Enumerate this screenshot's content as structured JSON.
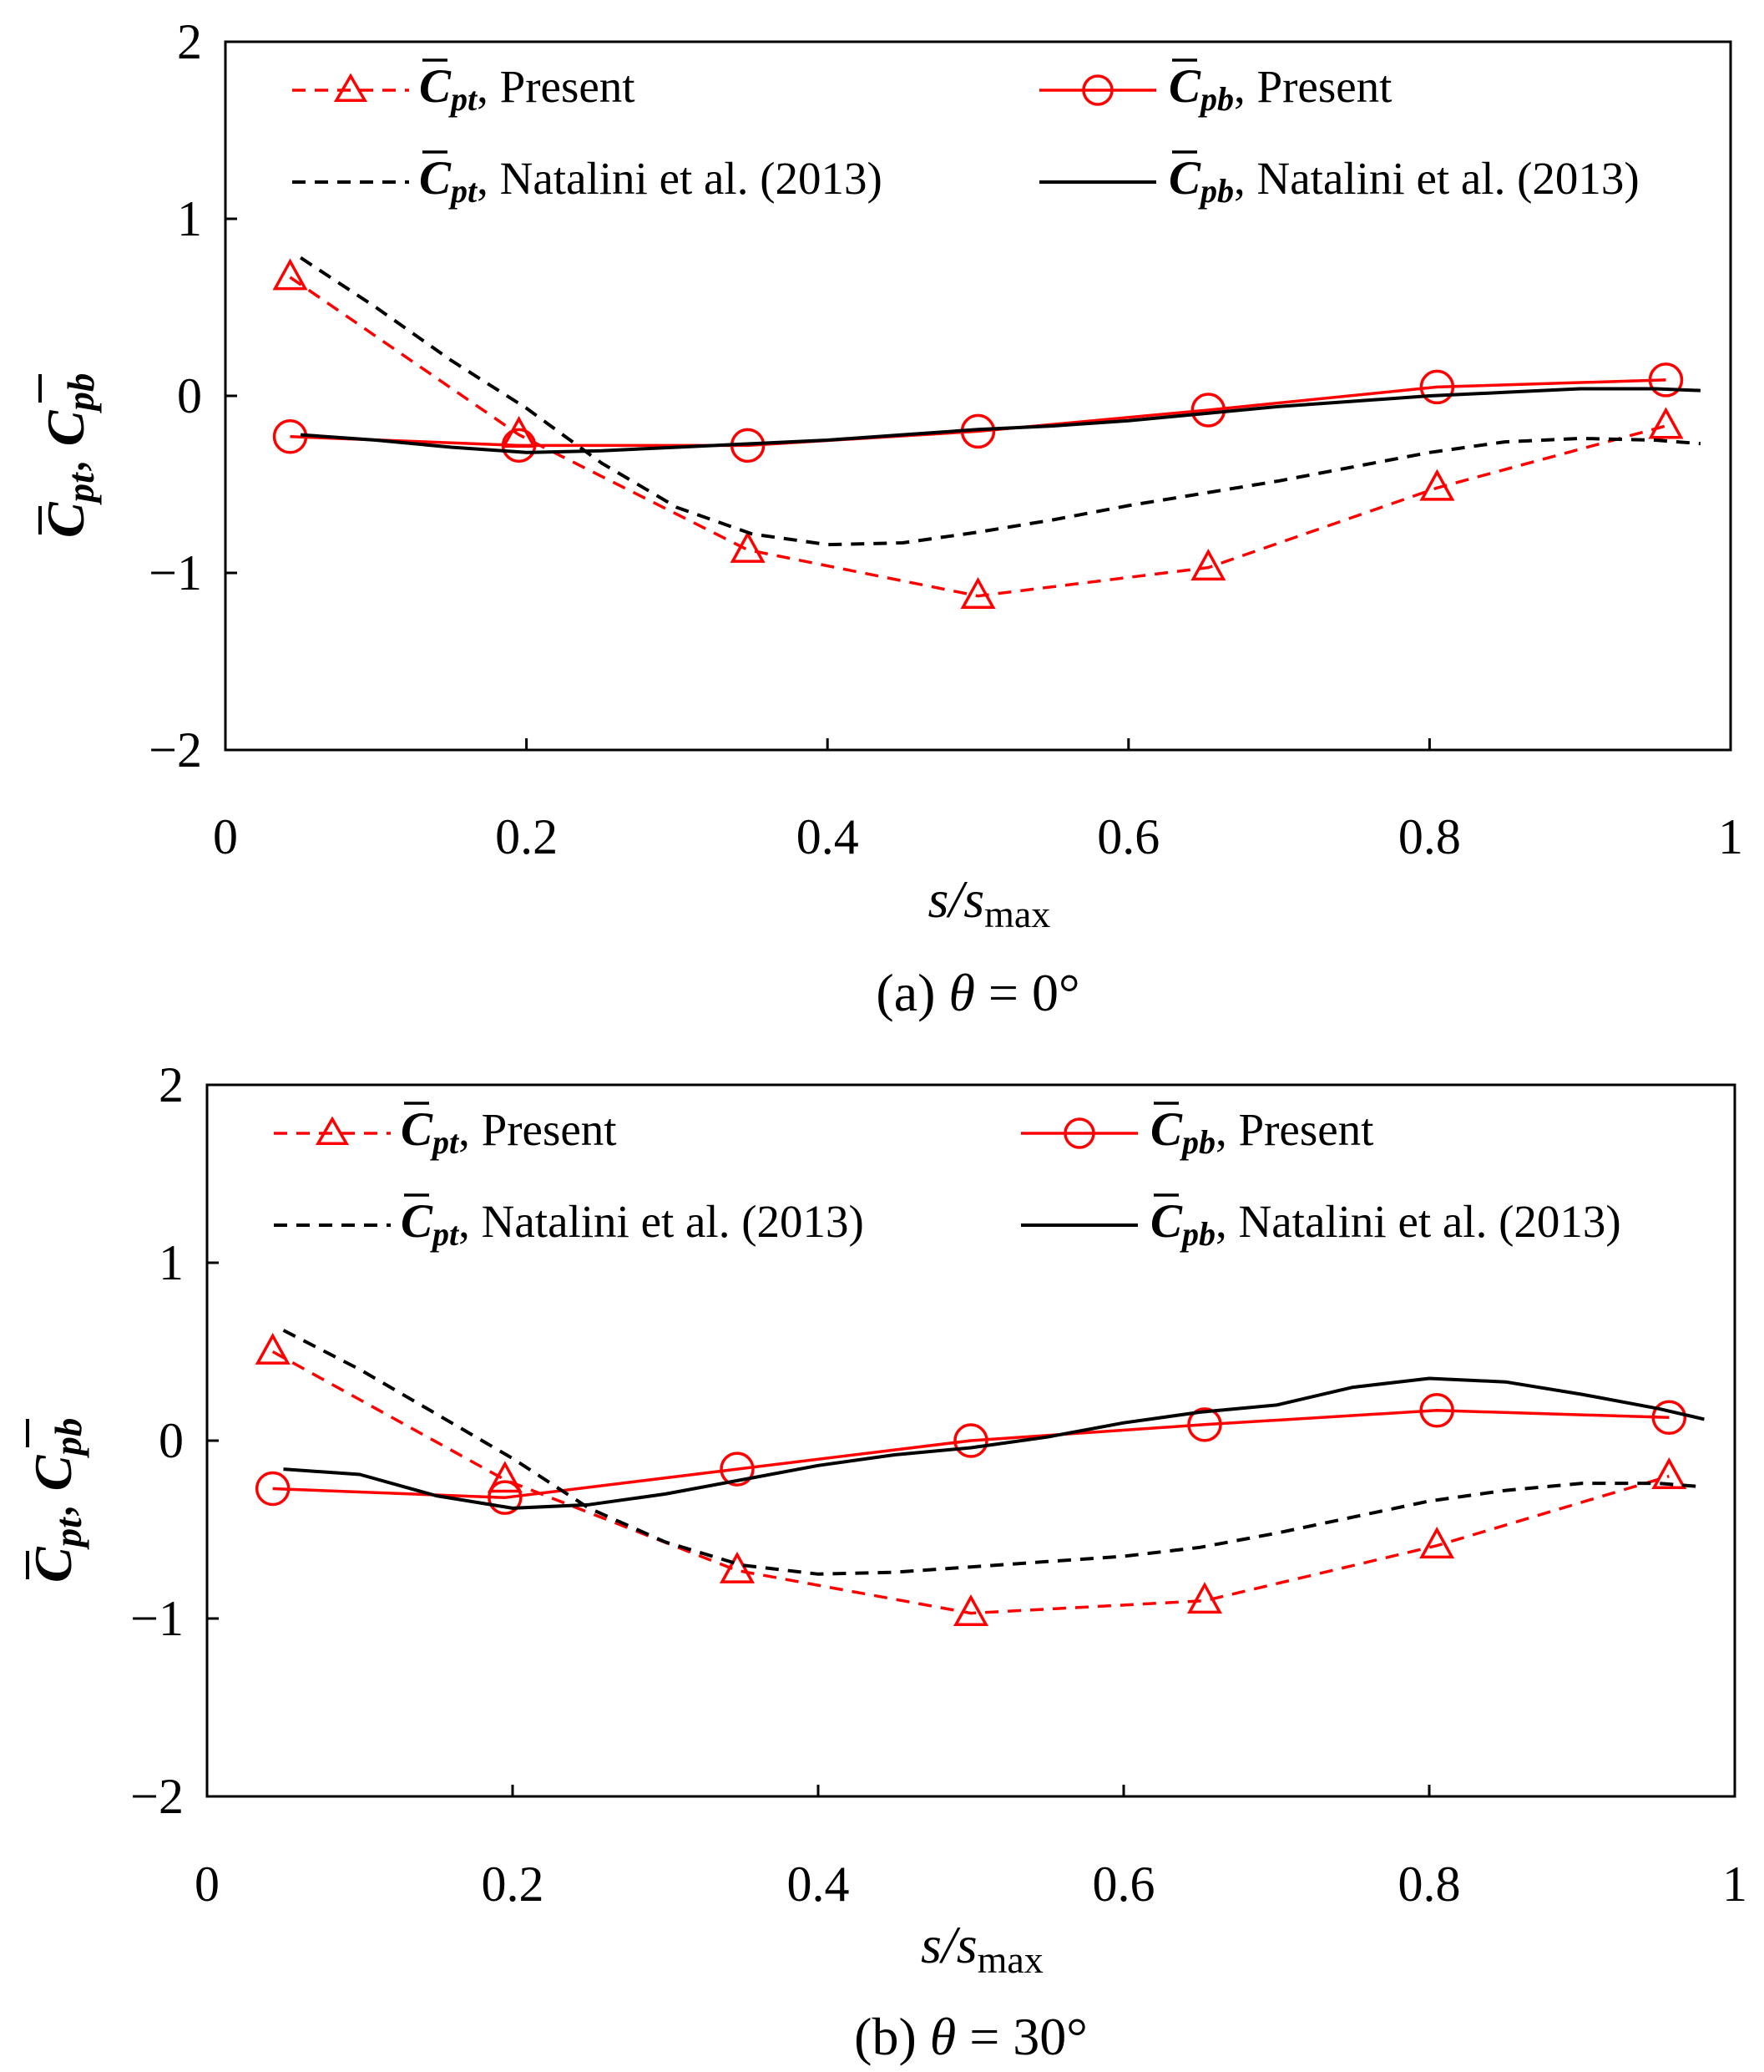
{
  "chart_data": [
    {
      "type": "line",
      "caption": "(a) θ = 0°",
      "caption_parts": {
        "prefix": "(a)",
        "theta": "θ",
        "eq": "= 0°"
      },
      "xlabel": {
        "s": "s",
        "slash": "/",
        "s2": "s",
        "sub": "max"
      },
      "ylabel": {
        "sym": "C",
        "sub1": "pt",
        "sep": ",",
        "sub2": "pb"
      },
      "xlim": [
        0,
        1
      ],
      "ylim": [
        -2,
        2
      ],
      "xticks": [
        {
          "v": 0,
          "label": "0"
        },
        {
          "v": 0.2,
          "label": "0.2"
        },
        {
          "v": 0.4,
          "label": "0.4"
        },
        {
          "v": 0.6,
          "label": "0.6"
        },
        {
          "v": 0.8,
          "label": "0.8"
        },
        {
          "v": 1,
          "label": "1"
        }
      ],
      "yticks": [
        {
          "v": 2,
          "label": "2"
        },
        {
          "v": 1,
          "label": "1"
        },
        {
          "v": 0,
          "label": "0"
        },
        {
          "v": -1,
          "label": "−1"
        },
        {
          "v": -2,
          "label": "−2"
        }
      ],
      "legend": {
        "placement": "top",
        "columns": 2
      },
      "series": [
        {
          "key": "cpt_present",
          "name": "Present",
          "symbol": "C",
          "sub": "pt",
          "color": "#ff0000",
          "dash": true,
          "marker": "triangle",
          "x": [
            0.043,
            0.195,
            0.347,
            0.5,
            0.653,
            0.805,
            0.957
          ],
          "y": [
            0.67,
            -0.22,
            -0.87,
            -1.13,
            -0.97,
            -0.52,
            -0.17
          ]
        },
        {
          "key": "cpb_present",
          "name": "Present",
          "symbol": "C",
          "sub": "pb",
          "color": "#ff0000",
          "dash": false,
          "marker": "circle",
          "x": [
            0.043,
            0.195,
            0.347,
            0.5,
            0.653,
            0.805,
            0.957
          ],
          "y": [
            -0.23,
            -0.28,
            -0.28,
            -0.2,
            -0.08,
            0.05,
            0.09
          ]
        },
        {
          "key": "cpt_natalini",
          "name": "Natalini et al. (2013)",
          "symbol": "C",
          "sub": "pt",
          "color": "#000000",
          "dash": true,
          "marker": "none",
          "x": [
            0.05,
            0.1,
            0.15,
            0.2,
            0.25,
            0.3,
            0.35,
            0.4,
            0.45,
            0.5,
            0.55,
            0.6,
            0.65,
            0.7,
            0.75,
            0.8,
            0.85,
            0.9,
            0.95,
            0.98
          ],
          "y": [
            0.78,
            0.5,
            0.2,
            -0.07,
            -0.38,
            -0.63,
            -0.78,
            -0.84,
            -0.83,
            -0.77,
            -0.7,
            -0.62,
            -0.55,
            -0.48,
            -0.4,
            -0.32,
            -0.26,
            -0.24,
            -0.25,
            -0.27
          ]
        },
        {
          "key": "cpb_natalini",
          "name": "Natalini et al. (2013)",
          "symbol": "C",
          "sub": "pb",
          "color": "#000000",
          "dash": false,
          "marker": "none",
          "x": [
            0.05,
            0.1,
            0.15,
            0.2,
            0.25,
            0.3,
            0.35,
            0.4,
            0.45,
            0.5,
            0.55,
            0.6,
            0.65,
            0.7,
            0.75,
            0.8,
            0.85,
            0.9,
            0.95,
            0.98
          ],
          "y": [
            -0.22,
            -0.25,
            -0.29,
            -0.32,
            -0.31,
            -0.29,
            -0.27,
            -0.25,
            -0.22,
            -0.19,
            -0.17,
            -0.14,
            -0.1,
            -0.06,
            -0.03,
            0.0,
            0.02,
            0.04,
            0.04,
            0.03
          ]
        }
      ]
    },
    {
      "type": "line",
      "caption": "(b) θ = 30°",
      "caption_parts": {
        "prefix": "(b)",
        "theta": "θ",
        "eq": "= 30°"
      },
      "xlabel": {
        "s": "s",
        "slash": "/",
        "s2": "s",
        "sub": "max"
      },
      "ylabel": {
        "sym": "C",
        "sub1": "pt",
        "sep": ",",
        "sub2": "pb"
      },
      "xlim": [
        0,
        1
      ],
      "ylim": [
        -2,
        2
      ],
      "xticks": [
        {
          "v": 0,
          "label": "0"
        },
        {
          "v": 0.2,
          "label": "0.2"
        },
        {
          "v": 0.4,
          "label": "0.4"
        },
        {
          "v": 0.6,
          "label": "0.6"
        },
        {
          "v": 0.8,
          "label": "0.8"
        },
        {
          "v": 1,
          "label": "1"
        }
      ],
      "yticks": [
        {
          "v": 2,
          "label": "2"
        },
        {
          "v": 1,
          "label": "1"
        },
        {
          "v": 0,
          "label": "0"
        },
        {
          "v": -1,
          "label": "−1"
        },
        {
          "v": -2,
          "label": "−2"
        }
      ],
      "legend": {
        "placement": "top",
        "columns": 2
      },
      "series": [
        {
          "key": "cpt_present",
          "name": "Present",
          "symbol": "C",
          "sub": "pt",
          "color": "#ff0000",
          "dash": true,
          "marker": "triangle",
          "x": [
            0.043,
            0.195,
            0.347,
            0.5,
            0.653,
            0.805,
            0.957
          ],
          "y": [
            0.5,
            -0.22,
            -0.73,
            -0.97,
            -0.9,
            -0.59,
            -0.2
          ]
        },
        {
          "key": "cpb_present",
          "name": "Present",
          "symbol": "C",
          "sub": "pb",
          "color": "#ff0000",
          "dash": false,
          "marker": "circle",
          "x": [
            0.043,
            0.195,
            0.347,
            0.5,
            0.653,
            0.805,
            0.957
          ],
          "y": [
            -0.27,
            -0.32,
            -0.16,
            0.0,
            0.09,
            0.17,
            0.13
          ]
        },
        {
          "key": "cpt_natalini",
          "name": "Natalini et al. (2013)",
          "symbol": "C",
          "sub": "pt",
          "color": "#000000",
          "dash": true,
          "marker": "none",
          "x": [
            0.05,
            0.1,
            0.15,
            0.2,
            0.25,
            0.3,
            0.35,
            0.4,
            0.45,
            0.5,
            0.55,
            0.6,
            0.65,
            0.7,
            0.75,
            0.8,
            0.85,
            0.9,
            0.95,
            0.98
          ],
          "y": [
            0.62,
            0.4,
            0.15,
            -0.1,
            -0.38,
            -0.57,
            -0.7,
            -0.75,
            -0.74,
            -0.71,
            -0.68,
            -0.65,
            -0.6,
            -0.52,
            -0.43,
            -0.34,
            -0.28,
            -0.24,
            -0.24,
            -0.26
          ]
        },
        {
          "key": "cpb_natalini",
          "name": "Natalini et al. (2013)",
          "symbol": "C",
          "sub": "pb",
          "color": "#000000",
          "dash": false,
          "marker": "none",
          "x": [
            0.05,
            0.1,
            0.15,
            0.2,
            0.25,
            0.3,
            0.35,
            0.4,
            0.45,
            0.5,
            0.55,
            0.6,
            0.65,
            0.7,
            0.75,
            0.8,
            0.85,
            0.9,
            0.95,
            0.98
          ],
          "y": [
            -0.16,
            -0.19,
            -0.31,
            -0.38,
            -0.36,
            -0.3,
            -0.22,
            -0.14,
            -0.08,
            -0.04,
            0.02,
            0.1,
            0.16,
            0.2,
            0.3,
            0.35,
            0.33,
            0.26,
            0.18,
            0.12
          ]
        }
      ]
    }
  ]
}
